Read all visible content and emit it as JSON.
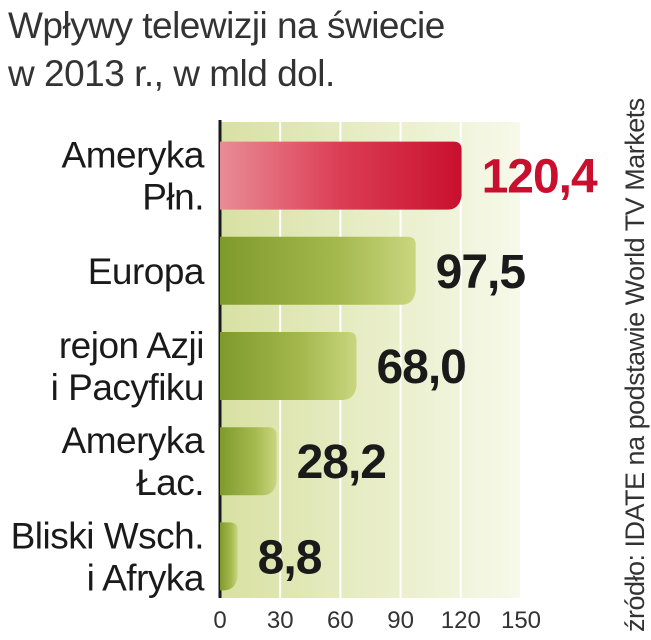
{
  "title_line1": "Wpływy telewizji na świecie",
  "title_line2": "w 2013 r., w mld dol.",
  "source": "źródło: IDATE na podstawie World TV Markets",
  "chart_data": {
    "type": "bar",
    "orientation": "horizontal",
    "title": "Wpływy telewizji na świecie w 2013 r., w mld dol.",
    "categories": [
      [
        "Ameryka",
        "Płn."
      ],
      [
        "Europa"
      ],
      [
        "rejon Azji",
        "i Pacyfiku"
      ],
      [
        "Ameryka",
        "Łac."
      ],
      [
        "Bliski Wsch.",
        "i Afryka"
      ]
    ],
    "values": [
      120.4,
      97.5,
      68.0,
      28.2,
      8.8
    ],
    "value_labels": [
      "120,4",
      "97,5",
      "68,0",
      "28,2",
      "8,8"
    ],
    "highlight_index": 0,
    "xlim": [
      0,
      150
    ],
    "xticks": [
      0,
      30,
      60,
      90,
      120,
      150
    ],
    "xtick_labels": [
      "0",
      "30",
      "60",
      "90",
      "120",
      "150"
    ],
    "grid": true,
    "colors": {
      "highlight_bar": "#d41f3b",
      "highlight_label": "#c8102e",
      "bar": "#8fa53a",
      "bar_light": "#c6d47d",
      "background": "#eef2d2",
      "axis": "#1a1a1a",
      "label": "#1a1a1a"
    }
  }
}
